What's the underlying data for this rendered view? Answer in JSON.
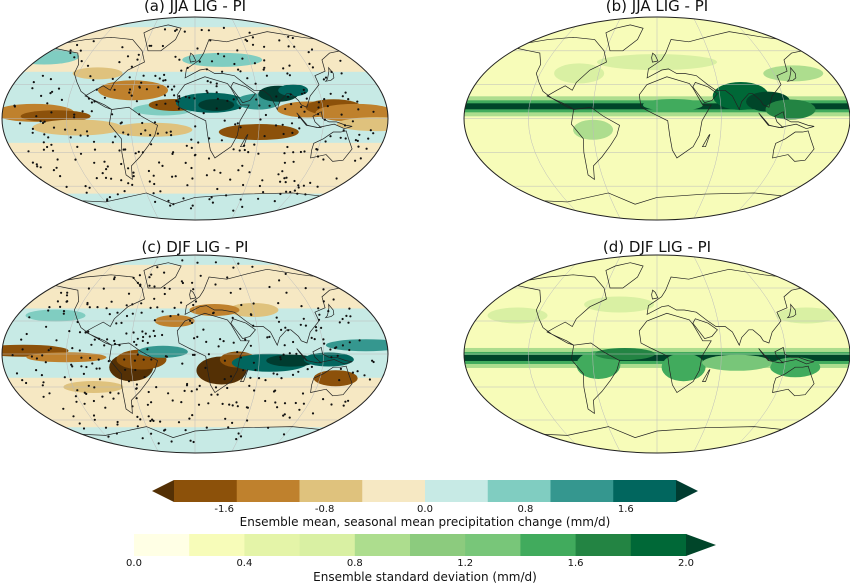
{
  "panels": [
    {
      "title": "(a) JJA LIG - PI",
      "field": "mean",
      "season": "JJA"
    },
    {
      "title": "(b) JJA LIG - PI",
      "field": "std",
      "season": "JJA"
    },
    {
      "title": "(c) DJF LIG - PI",
      "field": "mean",
      "season": "DJF"
    },
    {
      "title": "(d) DJF LIG - PI",
      "field": "std",
      "season": "DJF"
    }
  ],
  "colorbars": {
    "mean": {
      "label": "Ensemble mean, seasonal mean precipitation change (mm/d)",
      "ticks": [
        "-1.6",
        "-0.8",
        "0.0",
        "0.8",
        "1.6"
      ],
      "tick_values": [
        -1.6,
        -0.8,
        0.0,
        0.8,
        1.6
      ],
      "range": [
        -2.0,
        2.0
      ],
      "extend": "both",
      "colors": [
        "#543005",
        "#8c510a",
        "#bf812d",
        "#dfc27d",
        "#f6e8c3",
        "#c7eae5",
        "#80cdc1",
        "#35978f",
        "#01665e",
        "#003c30"
      ]
    },
    "std": {
      "label": "Ensemble standard deviation (mm/d)",
      "ticks": [
        "0.0",
        "0.4",
        "0.8",
        "1.2",
        "1.6",
        "2.0"
      ],
      "tick_values": [
        0.0,
        0.4,
        0.8,
        1.2,
        1.6,
        2.0
      ],
      "range": [
        0.0,
        2.0
      ],
      "extend": "max",
      "colors": [
        "#ffffe5",
        "#f7fcb9",
        "#e4f4a8",
        "#d9f0a3",
        "#addd8e",
        "#8ccb7e",
        "#78c679",
        "#41ab5d",
        "#238443",
        "#006837",
        "#004529"
      ]
    }
  }
}
